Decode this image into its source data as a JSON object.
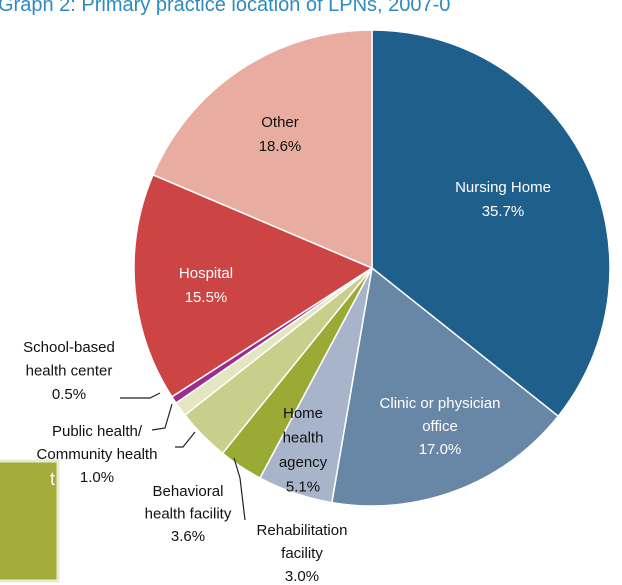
{
  "chart_data": {
    "type": "pie",
    "title": "Graph 2: Primary practice location of LPNs, 2007-0",
    "sidebar_fragment": "t",
    "categories": [
      "Nursing Home",
      "Clinic or physician office",
      "Home health agency",
      "Rehabilitation facility",
      "Behavioral health facility",
      "Public health/ Community health",
      "School-based health center",
      "Hospital",
      "Other"
    ],
    "values": [
      35.7,
      17.0,
      5.1,
      3.0,
      3.6,
      1.0,
      0.5,
      15.5,
      18.6
    ],
    "value_labels": [
      "35.7%",
      "17.0%",
      "5.1%",
      "3.0%",
      "3.6%",
      "1.0%",
      "0.5%",
      "15.5%",
      "18.6%"
    ],
    "colors": [
      "#1f5f8b",
      "#6886a6",
      "#a7b4ca",
      "#9aab35",
      "#c8cf8a",
      "#e4e6c2",
      "#9b2d8f",
      "#cc4444",
      "#e8ada0"
    ]
  }
}
